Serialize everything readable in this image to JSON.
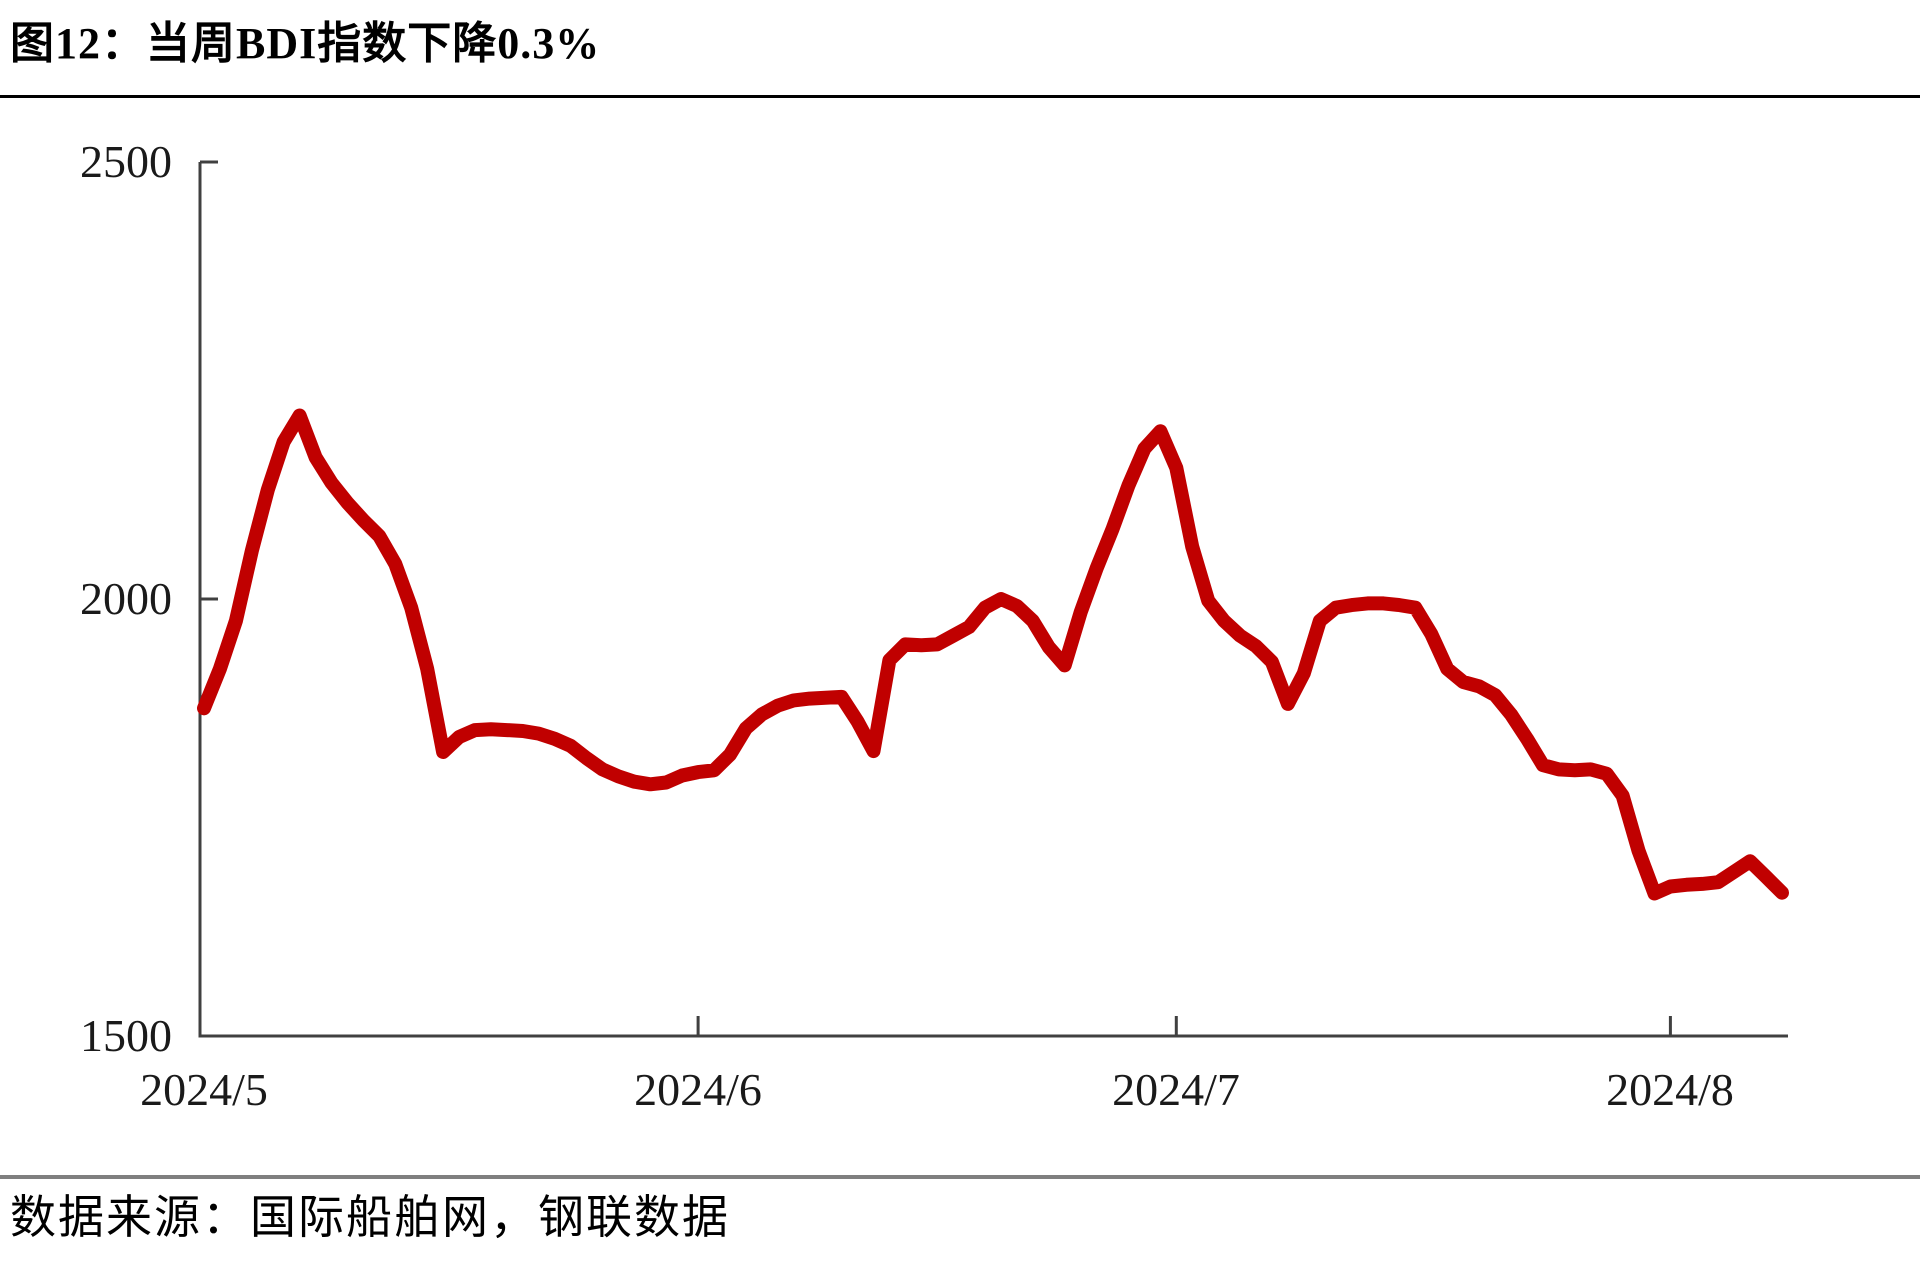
{
  "header": {
    "title": "图12：当周BDI指数下降0.3%"
  },
  "footer": {
    "source": "数据来源：国际船舶网，钢联数据"
  },
  "chart_data": {
    "type": "line",
    "title": "当周BDI指数下降0.3%",
    "xlabel": "",
    "ylabel": "",
    "ylim": [
      1500,
      2500
    ],
    "ytick_labels": [
      "2500",
      "2000",
      "1500"
    ],
    "xtick_labels": [
      "2024/5",
      "2024/6",
      "2024/7",
      "2024/8"
    ],
    "grid": false,
    "legend_position": "none",
    "line_color": "#c00000",
    "axis_color": "#404040",
    "series": [
      {
        "name": "BDI指数",
        "color": "#c00000",
        "x": [
          "5/1",
          "5/2",
          "5/3",
          "5/4",
          "5/5",
          "5/6",
          "5/7",
          "5/8",
          "5/9",
          "5/10",
          "5/11",
          "5/12",
          "5/13",
          "5/14",
          "5/15",
          "5/16",
          "5/17",
          "5/18",
          "5/19",
          "5/20",
          "5/21",
          "5/22",
          "5/23",
          "5/24",
          "5/25",
          "5/26",
          "5/27",
          "5/28",
          "5/29",
          "5/30",
          "5/31",
          "6/1",
          "6/2",
          "6/3",
          "6/4",
          "6/5",
          "6/6",
          "6/7",
          "6/8",
          "6/9",
          "6/10",
          "6/11",
          "6/12",
          "6/13",
          "6/14",
          "6/15",
          "6/16",
          "6/17",
          "6/18",
          "6/19",
          "6/20",
          "6/21",
          "6/22",
          "6/23",
          "6/24",
          "6/25",
          "6/26",
          "6/27",
          "6/28",
          "6/29",
          "6/30",
          "7/1",
          "7/2",
          "7/3",
          "7/4",
          "7/5",
          "7/6",
          "7/7",
          "7/8",
          "7/9",
          "7/10",
          "7/11",
          "7/12",
          "7/13",
          "7/14",
          "7/15",
          "7/16",
          "7/17",
          "7/18",
          "7/19",
          "7/20",
          "7/21",
          "7/22",
          "7/23",
          "7/24",
          "7/25",
          "7/26",
          "7/27",
          "7/28",
          "7/29",
          "7/30",
          "7/31",
          "8/1",
          "8/2",
          "8/3",
          "8/4",
          "8/5",
          "8/6",
          "8/7",
          "8/8"
        ],
        "values": [
          1875,
          1920,
          1975,
          2055,
          2125,
          2180,
          2210,
          2162,
          2133,
          2110,
          2090,
          2072,
          2040,
          1990,
          1920,
          1825,
          1842,
          1850,
          1851,
          1850,
          1849,
          1846,
          1840,
          1832,
          1818,
          1805,
          1797,
          1791,
          1788,
          1790,
          1798,
          1802,
          1804,
          1822,
          1852,
          1868,
          1878,
          1884,
          1886,
          1887,
          1888,
          1860,
          1826,
          1930,
          1948,
          1947,
          1948,
          1958,
          1968,
          1990,
          2000,
          1992,
          1975,
          1945,
          1924,
          1985,
          2035,
          2080,
          2130,
          2172,
          2192,
          2150,
          2060,
          1998,
          1975,
          1958,
          1946,
          1928,
          1880,
          1915,
          1975,
          1990,
          1993,
          1995,
          1995,
          1993,
          1990,
          1960,
          1920,
          1905,
          1900,
          1890,
          1868,
          1840,
          1810,
          1805,
          1804,
          1805,
          1800,
          1775,
          1712,
          1663,
          1671,
          1673,
          1674,
          1676,
          1688,
          1700,
          1682,
          1664
        ]
      }
    ]
  }
}
